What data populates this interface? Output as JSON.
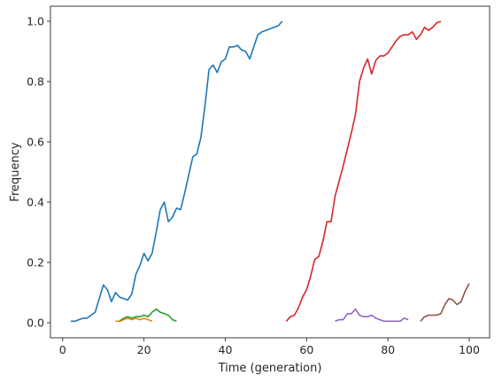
{
  "chart_data": {
    "type": "line",
    "xlabel": "Time (generation)",
    "ylabel": "Frequency",
    "xlim": [
      -3,
      105
    ],
    "ylim": [
      -0.05,
      1.05
    ],
    "xticks": [
      0,
      20,
      40,
      60,
      80,
      100
    ],
    "yticks": [
      0.0,
      0.2,
      0.4,
      0.6,
      0.8,
      1.0
    ],
    "grid": false,
    "legend": "none",
    "series": [
      {
        "color": "#1f77b4",
        "x": [
          2,
          3,
          4,
          5,
          6,
          7,
          8,
          9,
          10,
          11,
          12,
          13,
          14,
          15,
          16,
          17,
          18,
          19,
          20,
          21,
          22,
          23,
          24,
          25,
          26,
          27,
          28,
          29,
          30,
          31,
          32,
          33,
          34,
          35,
          36,
          37,
          38,
          39,
          40,
          41,
          42,
          43,
          44,
          45,
          46,
          47,
          48,
          49,
          50,
          51,
          52,
          53,
          54
        ],
        "y": [
          0.005,
          0.005,
          0.01,
          0.015,
          0.015,
          0.025,
          0.035,
          0.08,
          0.125,
          0.11,
          0.07,
          0.1,
          0.085,
          0.08,
          0.075,
          0.095,
          0.16,
          0.19,
          0.23,
          0.205,
          0.23,
          0.3,
          0.375,
          0.4,
          0.335,
          0.35,
          0.38,
          0.375,
          0.43,
          0.49,
          0.55,
          0.56,
          0.615,
          0.72,
          0.84,
          0.855,
          0.83,
          0.865,
          0.875,
          0.915,
          0.915,
          0.92,
          0.905,
          0.9,
          0.875,
          0.915,
          0.955,
          0.965,
          0.97,
          0.975,
          0.98,
          0.985,
          1.0
        ]
      },
      {
        "color": "#ff7f0e",
        "x": [
          13,
          14,
          15,
          16,
          17,
          18,
          19,
          20,
          21,
          22
        ],
        "y": [
          0.005,
          0.005,
          0.01,
          0.015,
          0.01,
          0.015,
          0.01,
          0.015,
          0.01,
          0.005
        ]
      },
      {
        "color": "#2ca02c",
        "x": [
          14,
          15,
          16,
          17,
          18,
          19,
          20,
          21,
          22,
          23,
          24,
          25,
          26,
          27,
          28
        ],
        "y": [
          0.005,
          0.015,
          0.02,
          0.015,
          0.02,
          0.02,
          0.025,
          0.02,
          0.035,
          0.045,
          0.035,
          0.03,
          0.025,
          0.01,
          0.005
        ]
      },
      {
        "color": "#d62728",
        "x": [
          55,
          56,
          57,
          58,
          59,
          60,
          61,
          62,
          63,
          64,
          65,
          66,
          67,
          68,
          69,
          70,
          71,
          72,
          73,
          74,
          75,
          76,
          77,
          78,
          79,
          80,
          81,
          82,
          83,
          84,
          85,
          86,
          87,
          88,
          89,
          90,
          91,
          92,
          93
        ],
        "y": [
          0.005,
          0.02,
          0.025,
          0.05,
          0.085,
          0.11,
          0.155,
          0.21,
          0.22,
          0.27,
          0.335,
          0.335,
          0.42,
          0.47,
          0.52,
          0.575,
          0.63,
          0.69,
          0.8,
          0.845,
          0.875,
          0.825,
          0.87,
          0.885,
          0.885,
          0.895,
          0.915,
          0.935,
          0.95,
          0.955,
          0.955,
          0.965,
          0.94,
          0.955,
          0.98,
          0.97,
          0.98,
          0.995,
          1.0
        ]
      },
      {
        "color": "#9467bd",
        "x": [
          67,
          68,
          69,
          70,
          71,
          72,
          73,
          74,
          75,
          76,
          77,
          78,
          79,
          80,
          81,
          82,
          83,
          84,
          85
        ],
        "y": [
          0.005,
          0.01,
          0.01,
          0.03,
          0.03,
          0.045,
          0.025,
          0.02,
          0.02,
          0.025,
          0.015,
          0.01,
          0.005,
          0.005,
          0.005,
          0.005,
          0.005,
          0.015,
          0.01
        ]
      },
      {
        "color": "#8c564b",
        "x": [
          88,
          89,
          90,
          91,
          92,
          93,
          94,
          95,
          96,
          97,
          98,
          99,
          100
        ],
        "y": [
          0.005,
          0.02,
          0.025,
          0.025,
          0.025,
          0.03,
          0.06,
          0.08,
          0.075,
          0.06,
          0.07,
          0.105,
          0.13
        ]
      }
    ]
  }
}
